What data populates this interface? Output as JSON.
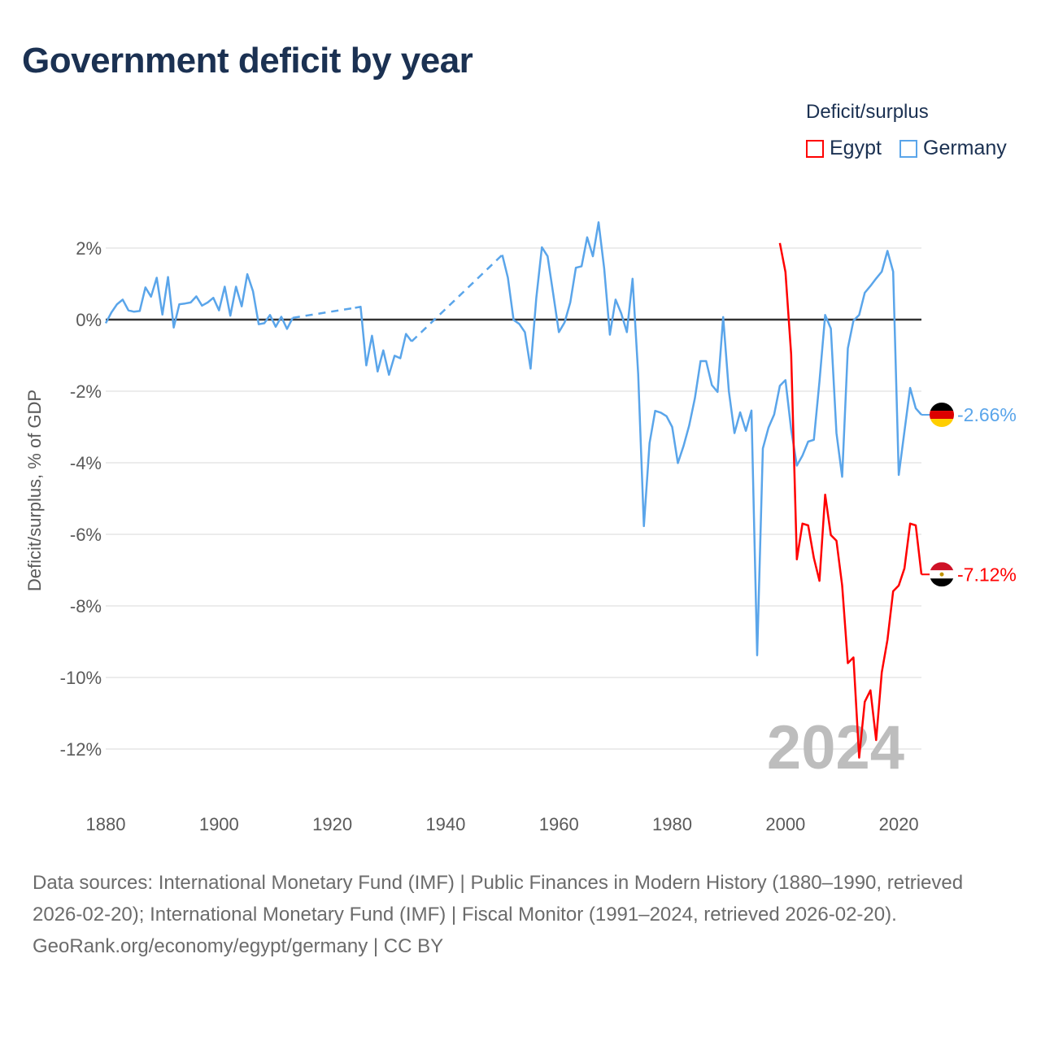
{
  "title": "Government deficit by year",
  "legend": {
    "title": "Deficit/surplus",
    "items": [
      {
        "name": "Egypt",
        "color": "#ff0000"
      },
      {
        "name": "Germany",
        "color": "#5aa5ea"
      }
    ]
  },
  "footer": {
    "sources": "Data sources: International Monetary Fund (IMF) | Public Finances in Modern History (1880–1990, retrieved 2026-02-20); International Monetary Fund (IMF) | Fiscal Monitor (1991–2024, retrieved 2026-02-20).",
    "credit": "GeoRank.org/economy/egypt/germany | CC BY"
  },
  "chart_data": {
    "type": "line",
    "title": "Government deficit by year",
    "xlabel": "",
    "ylabel": "Deficit/surplus, % of GDP",
    "xlim": [
      1880,
      2024
    ],
    "ylim": [
      -14,
      3
    ],
    "xticks": [
      1880,
      1900,
      1920,
      1940,
      1960,
      1980,
      2000,
      2020
    ],
    "xtick_labels": [
      "1880",
      "1900",
      "1920",
      "1940",
      "1960",
      "1980",
      "2000",
      "2020"
    ],
    "yticks": [
      2,
      0,
      -2,
      -4,
      -6,
      -8,
      -10,
      -12
    ],
    "ytick_labels": [
      "2%",
      "0%",
      "-2%",
      "-4%",
      "-6%",
      "-8%",
      "-10%",
      "-12%"
    ],
    "year_annotation": "2024",
    "legend_position": "top-right",
    "series": [
      {
        "name": "Germany",
        "color": "#5aa5ea",
        "end_label": "-2.66%",
        "points": [
          [
            1880,
            -0.1
          ],
          [
            1881,
            0.2
          ],
          [
            1882,
            0.43
          ],
          [
            1883,
            0.56
          ],
          [
            1884,
            0.26
          ],
          [
            1885,
            0.22
          ],
          [
            1886,
            0.24
          ],
          [
            1887,
            0.9
          ],
          [
            1888,
            0.64
          ],
          [
            1889,
            1.17
          ],
          [
            1890,
            0.14
          ],
          [
            1891,
            1.19
          ],
          [
            1892,
            -0.22
          ],
          [
            1893,
            0.43
          ],
          [
            1894,
            0.45
          ],
          [
            1895,
            0.48
          ],
          [
            1896,
            0.65
          ],
          [
            1897,
            0.39
          ],
          [
            1898,
            0.48
          ],
          [
            1899,
            0.61
          ],
          [
            1900,
            0.26
          ],
          [
            1901,
            0.92
          ],
          [
            1902,
            0.11
          ],
          [
            1903,
            0.92
          ],
          [
            1904,
            0.37
          ],
          [
            1905,
            1.27
          ],
          [
            1906,
            0.79
          ],
          [
            1907,
            -0.13
          ],
          [
            1908,
            -0.1
          ],
          [
            1909,
            0.13
          ],
          [
            1910,
            -0.2
          ],
          [
            1911,
            0.08
          ],
          [
            1912,
            -0.26
          ],
          [
            1913,
            0.05
          ],
          [
            1924,
            0.33
          ],
          [
            1925,
            0.36
          ],
          [
            1926,
            -1.28
          ],
          [
            1927,
            -0.45
          ],
          [
            1928,
            -1.45
          ],
          [
            1929,
            -0.86
          ],
          [
            1930,
            -1.54
          ],
          [
            1931,
            -1.01
          ],
          [
            1932,
            -1.08
          ],
          [
            1933,
            -0.4
          ],
          [
            1934,
            -0.61
          ],
          [
            1950,
            1.81
          ],
          [
            1951,
            1.17
          ],
          [
            1952,
            -0.01
          ],
          [
            1953,
            -0.12
          ],
          [
            1954,
            -0.35
          ],
          [
            1955,
            -1.37
          ],
          [
            1956,
            0.6
          ],
          [
            1957,
            2.02
          ],
          [
            1958,
            1.77
          ],
          [
            1959,
            0.71
          ],
          [
            1960,
            -0.35
          ],
          [
            1961,
            -0.08
          ],
          [
            1962,
            0.48
          ],
          [
            1963,
            1.45
          ],
          [
            1964,
            1.49
          ],
          [
            1965,
            2.3
          ],
          [
            1966,
            1.77
          ],
          [
            1967,
            2.72
          ],
          [
            1968,
            1.43
          ],
          [
            1969,
            -0.42
          ],
          [
            1970,
            0.56
          ],
          [
            1971,
            0.18
          ],
          [
            1972,
            -0.35
          ],
          [
            1973,
            1.14
          ],
          [
            1974,
            -1.52
          ],
          [
            1975,
            -5.77
          ],
          [
            1976,
            -3.45
          ],
          [
            1977,
            -2.55
          ],
          [
            1978,
            -2.6
          ],
          [
            1979,
            -2.7
          ],
          [
            1980,
            -3.0
          ],
          [
            1981,
            -4.01
          ],
          [
            1982,
            -3.53
          ],
          [
            1983,
            -2.96
          ],
          [
            1984,
            -2.2
          ],
          [
            1985,
            -1.16
          ],
          [
            1986,
            -1.16
          ],
          [
            1987,
            -1.83
          ],
          [
            1988,
            -2.02
          ],
          [
            1989,
            0.07
          ],
          [
            1990,
            -2.0
          ],
          [
            1991,
            -3.17
          ],
          [
            1992,
            -2.59
          ],
          [
            1993,
            -3.11
          ],
          [
            1994,
            -2.54
          ],
          [
            1995,
            -9.38
          ],
          [
            1996,
            -3.6
          ],
          [
            1997,
            -3.02
          ],
          [
            1998,
            -2.65
          ],
          [
            1999,
            -1.85
          ],
          [
            2000,
            -1.69
          ],
          [
            2001,
            -3.07
          ],
          [
            2002,
            -4.08
          ],
          [
            2003,
            -3.8
          ],
          [
            2004,
            -3.41
          ],
          [
            2005,
            -3.36
          ],
          [
            2006,
            -1.73
          ],
          [
            2007,
            0.13
          ],
          [
            2008,
            -0.25
          ],
          [
            2009,
            -3.17
          ],
          [
            2010,
            -4.39
          ],
          [
            2011,
            -0.8
          ],
          [
            2012,
            -0.03
          ],
          [
            2013,
            0.13
          ],
          [
            2014,
            0.75
          ],
          [
            2015,
            0.94
          ],
          [
            2016,
            1.15
          ],
          [
            2017,
            1.34
          ],
          [
            2018,
            1.92
          ],
          [
            2019,
            1.34
          ],
          [
            2020,
            -4.34
          ],
          [
            2021,
            -3.12
          ],
          [
            2022,
            -1.91
          ],
          [
            2023,
            -2.48
          ],
          [
            2024,
            -2.66
          ]
        ]
      },
      {
        "name": "Egypt",
        "color": "#ff0000",
        "end_label": "-7.12%",
        "points": [
          [
            1999,
            2.14
          ],
          [
            2000,
            1.33
          ],
          [
            2001,
            -0.97
          ],
          [
            2002,
            -6.7
          ],
          [
            2003,
            -5.7
          ],
          [
            2004,
            -5.75
          ],
          [
            2005,
            -6.66
          ],
          [
            2006,
            -7.3
          ],
          [
            2007,
            -4.89
          ],
          [
            2008,
            -6.02
          ],
          [
            2009,
            -6.18
          ],
          [
            2010,
            -7.43
          ],
          [
            2011,
            -9.6
          ],
          [
            2012,
            -9.44
          ],
          [
            2013,
            -12.24
          ],
          [
            2014,
            -10.68
          ],
          [
            2015,
            -10.36
          ],
          [
            2016,
            -11.75
          ],
          [
            2017,
            -9.86
          ],
          [
            2018,
            -8.95
          ],
          [
            2019,
            -7.59
          ],
          [
            2020,
            -7.43
          ],
          [
            2021,
            -6.95
          ],
          [
            2022,
            -5.7
          ],
          [
            2023,
            -5.75
          ],
          [
            2024,
            -7.12
          ]
        ]
      }
    ]
  }
}
